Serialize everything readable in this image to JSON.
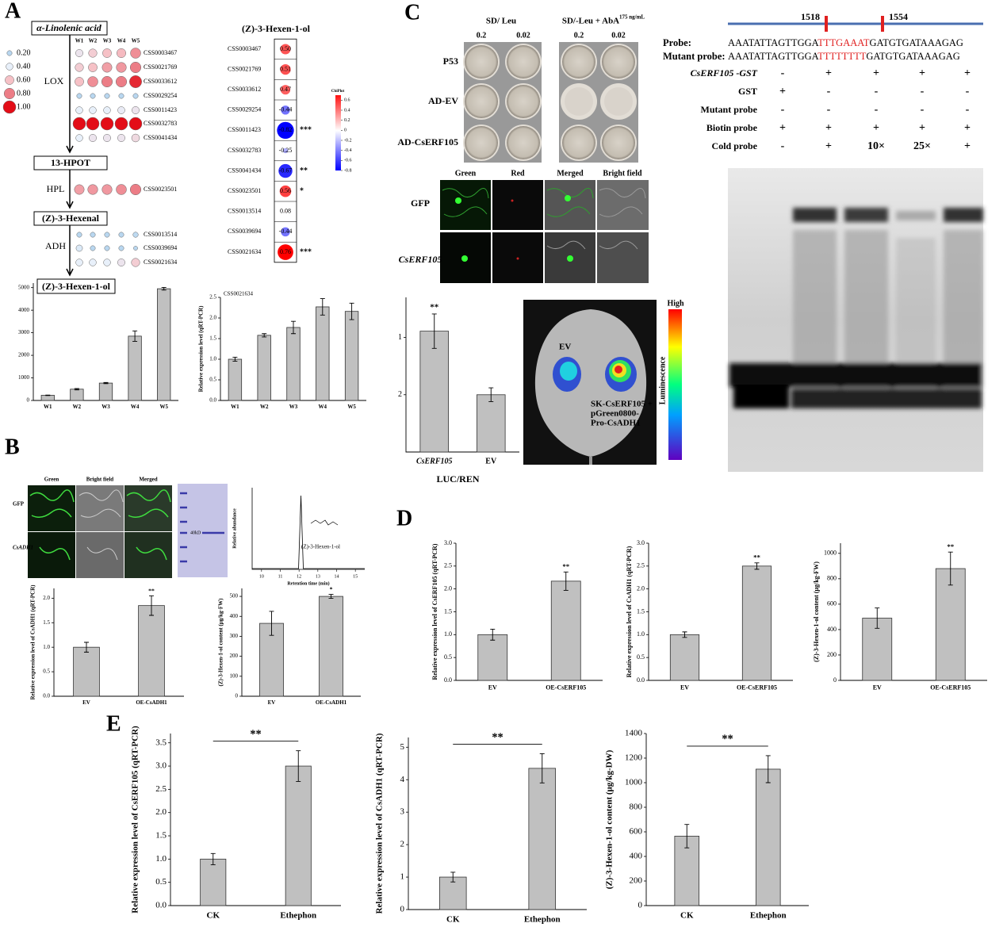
{
  "panels": [
    "A",
    "B",
    "C",
    "D",
    "E"
  ],
  "pathway": {
    "nodes": [
      "α-Linolenic acid",
      "13-HPOT",
      "(Z)-3-Hexenal",
      "(Z)-3-Hexen-1-ol"
    ],
    "enzymes": [
      "LOX",
      "HPL",
      "ADH"
    ]
  },
  "subcellular_b": {
    "columns": [
      "Green",
      "Bright field",
      "Merged"
    ],
    "rows": [
      "GFP",
      "CsADH1"
    ],
    "gel_marker": "40kD"
  },
  "chromatogram": {
    "ylabel": "Relative abundance",
    "xlabel": "Retention time (min)",
    "xlim": [
      9.5,
      15.5
    ],
    "xticks": [
      10,
      11,
      12,
      13,
      14,
      15
    ],
    "peak_x": 12.1,
    "peak_label": "(Z)-3-Hexen-1-ol"
  },
  "yeast": {
    "headers": [
      "SD/ Leu",
      "SD/-Leu + AbA"
    ],
    "aba_sup": "175 ng/mL",
    "concentrations": [
      "0.2",
      "0.02",
      "0.2",
      "0.02"
    ],
    "rows": [
      "P53",
      "AD-EV",
      "AD-CsERF105"
    ]
  },
  "subcellular_c": {
    "columns": [
      "Green",
      "Red",
      "Merged",
      "Bright field"
    ],
    "rows": [
      "GFP",
      "CsERF105"
    ]
  },
  "luciferase": {
    "ev": "EV",
    "construct": [
      "SK-CsERF105 +",
      "pGreen0800-",
      "Pro-CsADH1"
    ],
    "scale_top": "High",
    "scale_label": "Luminescence"
  },
  "emsa": {
    "positions": [
      "1518",
      "1554"
    ],
    "probe": {
      "label": "Probe:",
      "seq": [
        "AAATATTAGTTGGA",
        "TTTGAAAT",
        "GATGTGATAAAGAG"
      ]
    },
    "mutant_probe": {
      "label": "Mutant probe:",
      "seq": [
        "AAATATTAGTTGGA",
        "TTTTTTTT",
        "GATGTGATAAAGAG"
      ]
    },
    "rows": [
      {
        "label": "CsERF105 -GST",
        "lanes": [
          "-",
          "+",
          "+",
          "+",
          "+"
        ]
      },
      {
        "label": "GST",
        "lanes": [
          "+",
          "-",
          "-",
          "-",
          "-"
        ]
      },
      {
        "label": "Mutant probe",
        "lanes": [
          "-",
          "-",
          "-",
          "-",
          "-"
        ]
      },
      {
        "label": "Biotin probe",
        "lanes": [
          "+",
          "+",
          "+",
          "+",
          "+"
        ]
      },
      {
        "label": "Cold probe",
        "lanes": [
          "-",
          "+",
          "10×",
          "25×",
          "+"
        ]
      }
    ]
  },
  "chart_data": [
    {
      "type": "bubble_matrix",
      "columns": [
        "W1",
        "W2",
        "W3",
        "W4",
        "W5"
      ],
      "series": [
        {
          "name": "CSS0003467",
          "values": [
            0.45,
            0.55,
            0.6,
            0.62,
            0.75
          ]
        },
        {
          "name": "CSS0021769",
          "values": [
            0.55,
            0.6,
            0.7,
            0.72,
            0.8
          ]
        },
        {
          "name": "CSS0033612",
          "values": [
            0.6,
            0.75,
            0.8,
            0.8,
            0.95
          ]
        },
        {
          "name": "CSS0029254",
          "values": [
            0.2,
            0.2,
            0.2,
            0.2,
            0.2
          ]
        },
        {
          "name": "CSS0011423",
          "values": [
            0.4,
            0.4,
            0.4,
            0.42,
            0.45
          ]
        },
        {
          "name": "CSS0032783",
          "values": [
            1.0,
            1.0,
            1.0,
            1.0,
            1.0
          ]
        },
        {
          "name": "CSS0041434",
          "values": [
            0.4,
            0.45,
            0.45,
            0.45,
            0.5
          ]
        },
        {
          "name": "CSS0023501",
          "values": [
            0.7,
            0.72,
            0.72,
            0.75,
            0.8
          ]
        },
        {
          "name": "CSS0013514",
          "values": [
            0.2,
            0.2,
            0.2,
            0.2,
            0.22
          ]
        },
        {
          "name": "CSS0039694",
          "values": [
            0.35,
            0.2,
            0.2,
            0.2,
            0.1
          ]
        },
        {
          "name": "CSS0021634",
          "values": [
            0.4,
            0.4,
            0.4,
            0.45,
            0.55
          ]
        }
      ],
      "size_legend": {
        "ticks": [
          {
            "value": 0.2,
            "label": "0.20"
          },
          {
            "value": 0.4,
            "label": "0.40"
          },
          {
            "value": 0.6,
            "label": "0.60"
          },
          {
            "value": 0.8,
            "label": "0.80"
          },
          {
            "value": 1.0,
            "label": "1.00"
          }
        ],
        "colors": [
          "#b9d7f0",
          "#e8f0fa",
          "#f6c1c6",
          "#ec7d86",
          "#e30d17"
        ]
      }
    },
    {
      "type": "correlation",
      "title": "(Z)-3-Hexen-1-ol",
      "categories": [
        "CSS0003467",
        "CSS0021769",
        "CSS0033612",
        "CSS0029254",
        "CSS0011423",
        "CSS0032783",
        "CSS0041434",
        "CSS0023501",
        "CSS0013514",
        "CSS0039694",
        "CSS0021634"
      ],
      "values": [
        0.5,
        0.51,
        0.47,
        -0.44,
        -0.82,
        -0.25,
        -0.67,
        0.56,
        0.08,
        -0.44,
        0.76
      ],
      "value_labels": [
        "0.50",
        "0.51",
        "0.47",
        "-0.44",
        "-0.82",
        "-0.25",
        "-0.67",
        "0.56",
        "0.08",
        "-0.44",
        "0.76"
      ],
      "significance": [
        null,
        null,
        null,
        null,
        "***",
        null,
        "**",
        "*",
        null,
        null,
        "***"
      ],
      "colorbar": {
        "title": "ChiPlot",
        "lim": [
          -0.8,
          0.7
        ],
        "ticks": [
          0.6,
          0.4,
          0.2,
          0,
          -0.2,
          -0.4,
          -0.6,
          -0.8
        ]
      }
    },
    {
      "type": "bar",
      "categories": [
        "W1",
        "W2",
        "W3",
        "W4",
        "W5"
      ],
      "values": [
        230,
        500,
        770,
        2850,
        4950
      ],
      "errors": [
        10,
        30,
        25,
        230,
        60
      ],
      "ylim": [
        0,
        5200
      ],
      "yticks": [
        0,
        1000,
        2000,
        3000,
        4000,
        5000
      ],
      "color": "#c0c0c0"
    },
    {
      "type": "bar",
      "title": "CSS0021634",
      "ylabel": "Relative expression level (qRT-PCR)",
      "categories": [
        "W1",
        "W2",
        "W3",
        "W4",
        "W5"
      ],
      "values": [
        1.0,
        1.58,
        1.77,
        2.27,
        2.16
      ],
      "errors": [
        0.05,
        0.04,
        0.15,
        0.2,
        0.2
      ],
      "ylim": [
        0,
        2.5
      ],
      "yticks": [
        {
          "value": 0,
          "label": "0.0"
        },
        0.5,
        {
          "value": 1,
          "label": "1.0"
        },
        1.5,
        {
          "value": 2,
          "label": "2.0"
        },
        2.5
      ],
      "color": "#c0c0c0"
    },
    {
      "type": "bar",
      "ylabel": "Relative expression level of CsADH1 (qRT-PCR)",
      "categories": [
        "EV",
        "OE-CsADH1"
      ],
      "values": [
        1.0,
        1.85
      ],
      "errors": [
        0.1,
        0.2
      ],
      "significance": [
        null,
        "**"
      ],
      "ylim": [
        0,
        2.2
      ],
      "yticks": [
        {
          "value": 0,
          "label": "0.0"
        },
        0.5,
        {
          "value": 1,
          "label": "1.0"
        },
        1.5,
        {
          "value": 2,
          "label": "2.0"
        }
      ],
      "color": "#c0c0c0"
    },
    {
      "type": "bar",
      "ylabel": "(Z)-3-Hexen-1-ol content (μg/kg·FW)",
      "categories": [
        "EV",
        "OE-CsADH1"
      ],
      "values": [
        365,
        500
      ],
      "errors": [
        60,
        10
      ],
      "significance": [
        null,
        "*"
      ],
      "ylim": [
        0,
        540
      ],
      "yticks": [
        0,
        100,
        200,
        300,
        400,
        500
      ],
      "color": "#c0c0c0"
    },
    {
      "type": "bar",
      "xlabel": "LUC/REN",
      "categories": [
        "CsERF105",
        "EV"
      ],
      "values": [
        0.89,
        2.0
      ],
      "errors": [
        0.3,
        0.12
      ],
      "significance": [
        "**",
        null
      ],
      "ylim": [
        3,
        0.3
      ],
      "yticks": [
        1,
        2
      ],
      "color": "#c0c0c0"
    },
    {
      "type": "bar",
      "ylabel": "Relative expression level of CsERF105 (qRT-PCR)",
      "categories": [
        "EV",
        "OE-CsERF105"
      ],
      "values": [
        1.0,
        2.17
      ],
      "errors": [
        0.12,
        0.2
      ],
      "significance": [
        null,
        "**"
      ],
      "ylim": [
        0,
        3
      ],
      "yticks": [
        {
          "value": 0,
          "label": "0.0"
        },
        0.5,
        {
          "value": 1,
          "label": "1.0"
        },
        1.5,
        {
          "value": 2,
          "label": "2.0"
        },
        2.5,
        {
          "value": 3,
          "label": "3.0"
        }
      ],
      "color": "#c0c0c0"
    },
    {
      "type": "bar",
      "ylabel": "Relative expression level of CsADH1 (qRT-PCR)",
      "categories": [
        "EV",
        "OE-CsERF105"
      ],
      "values": [
        1.0,
        2.5
      ],
      "errors": [
        0.06,
        0.07
      ],
      "significance": [
        null,
        "**"
      ],
      "ylim": [
        0,
        3
      ],
      "yticks": [
        {
          "value": 0,
          "label": "0.0"
        },
        0.5,
        {
          "value": 1,
          "label": "1.0"
        },
        1.5,
        {
          "value": 2,
          "label": "2.0"
        },
        2.5,
        {
          "value": 3,
          "label": "3.0"
        }
      ],
      "color": "#c0c0c0"
    },
    {
      "type": "bar",
      "ylabel": "(Z)-3-Hexen-1-ol content (μg/kg-FW)",
      "categories": [
        "EV",
        "OE-CsERF105"
      ],
      "values": [
        490,
        880
      ],
      "errors": [
        80,
        130
      ],
      "significance": [
        null,
        "**"
      ],
      "ylim": [
        0,
        1080
      ],
      "yticks": [
        0,
        200,
        400,
        600,
        800,
        1000
      ],
      "color": "#c0c0c0"
    },
    {
      "type": "bar",
      "ylabel": "Relative expression level of CsERF105 (qRT-PCR)",
      "categories": [
        "CK",
        "Ethephon"
      ],
      "values": [
        1.0,
        3.0
      ],
      "errors": [
        0.12,
        0.33
      ],
      "bracket_label": "**",
      "ylim": [
        0,
        3.7
      ],
      "yticks": [
        {
          "value": 0,
          "label": "0.0"
        },
        0.5,
        {
          "value": 1,
          "label": "1.0"
        },
        1.5,
        {
          "value": 2,
          "label": "2.0"
        },
        2.5,
        {
          "value": 3,
          "label": "3.0"
        },
        3.5
      ],
      "color": "#c0c0c0"
    },
    {
      "type": "bar",
      "ylabel": "Relative expression level of CsADH1 (qRT-PCR)",
      "categories": [
        "CK",
        "Ethephon"
      ],
      "values": [
        1.0,
        4.35
      ],
      "errors": [
        0.15,
        0.45
      ],
      "bracket_label": "**",
      "ylim": [
        0,
        5.3
      ],
      "yticks": [
        0,
        1,
        2,
        3,
        4,
        5
      ],
      "color": "#c0c0c0"
    },
    {
      "type": "bar",
      "ylabel": "(Z)-3-Hexen-1-ol content  (μg/kg-DW)",
      "categories": [
        "CK",
        "Ethephon"
      ],
      "values": [
        565,
        1110
      ],
      "errors": [
        95,
        110
      ],
      "bracket_label": "**",
      "ylim": [
        0,
        1400
      ],
      "yticks": [
        0,
        200,
        400,
        600,
        800,
        1000,
        1200,
        1400
      ],
      "color": "#c0c0c0"
    }
  ]
}
